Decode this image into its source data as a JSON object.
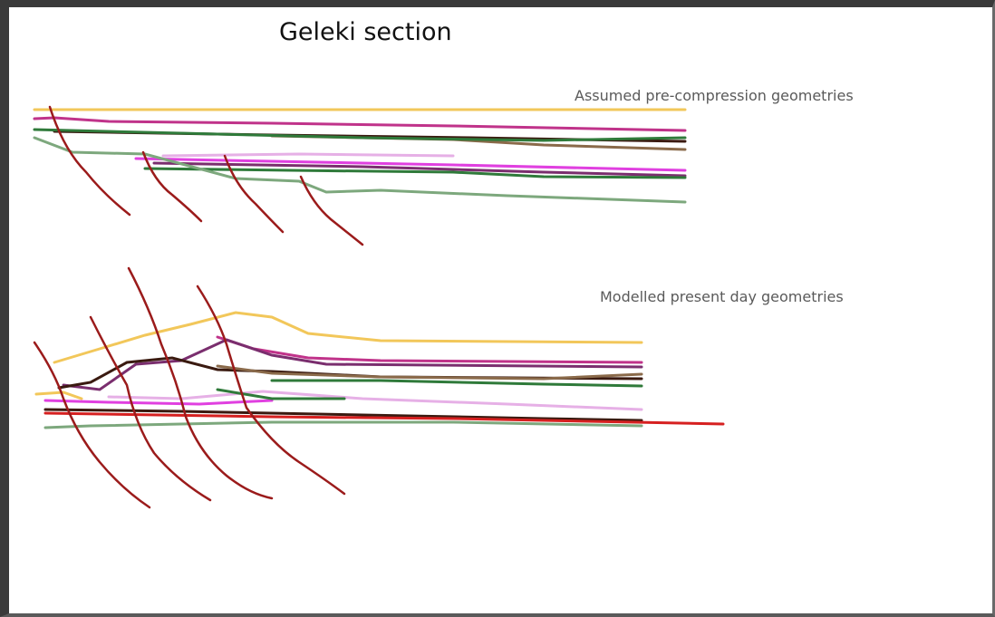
{
  "figure": {
    "title": "Geleki section",
    "upper_panel_label": "Assumed pre-compression geometries",
    "lower_panel_label": "Modelled present day geometries"
  },
  "colors": {
    "background": "#ffffff",
    "frame": "#3a3a3a",
    "fault": "#9b1b1b",
    "horizons": [
      "#f2c75a",
      "#c0338a",
      "#5a2a1a",
      "#8a6a4a",
      "#2f7a3a",
      "#e040e0",
      "#7a2e6e",
      "#7da87d",
      "#d62020"
    ]
  }
}
